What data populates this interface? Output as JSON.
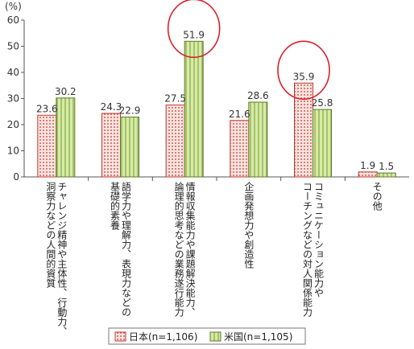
{
  "chart_data": {
    "type": "bar",
    "unit": "(%)",
    "ylim": [
      0,
      60
    ],
    "yticks": [
      "0",
      "10",
      "20",
      "30",
      "40",
      "50",
      "60"
    ],
    "categories": [
      [
        "チャレンジ精神や主体性、行動力、",
        "洞察力などの人間的資質"
      ],
      [
        "語学力や理解力、表現力などの",
        "基礎的素養"
      ],
      [
        "情報収集能力や課題解決能力、",
        "論理的思考などの業務遂行能力"
      ],
      [
        "企画発想力や創造性"
      ],
      [
        "コミュニケーション能力や",
        "コーチングなどの対人関係能力"
      ],
      [
        "その他"
      ]
    ],
    "series": [
      {
        "name": "日本(n=1,106)",
        "values": [
          23.6,
          24.3,
          27.5,
          21.6,
          35.9,
          1.9
        ],
        "labels": [
          "23.6",
          "24.3",
          "27.5",
          "21.6",
          "35.9",
          "1.9"
        ]
      },
      {
        "name": "米国(n=1,105)",
        "values": [
          30.2,
          22.9,
          51.9,
          28.6,
          25.8,
          1.5
        ],
        "labels": [
          "30.2",
          "22.9",
          "51.9",
          "28.6",
          "25.8",
          "1.5"
        ]
      }
    ],
    "highlighted": [
      {
        "category_index": 2,
        "series_index": 1
      },
      {
        "category_index": 4,
        "series_index": 0
      }
    ],
    "grid": false,
    "legend": "bottom-center",
    "colors": {
      "japan_stroke": "#c8322c",
      "japan_fill": "#f7d9d4",
      "us_stroke": "#5d7a2a",
      "us_fill": "#cfe69a",
      "highlight": "#d9202a",
      "axis": "#555555"
    }
  }
}
